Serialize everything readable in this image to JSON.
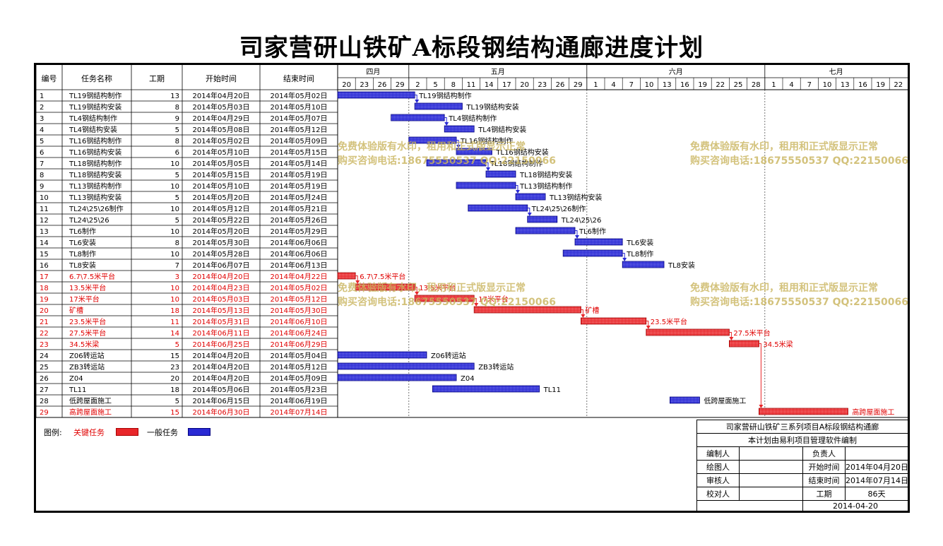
{
  "title": "司家营研山铁矿A标段钢结构通廊进度计划",
  "headers": {
    "id": "编号",
    "name": "任务名称",
    "duration": "工期",
    "start": "开始时间",
    "end": "结束时间"
  },
  "months": [
    {
      "label": "四月",
      "days": [
        "20",
        "23",
        "26",
        "29"
      ]
    },
    {
      "label": "五月",
      "days": [
        "2",
        "5",
        "8",
        "11",
        "14",
        "17",
        "20",
        "23",
        "26",
        "29"
      ]
    },
    {
      "label": "六月",
      "days": [
        "1",
        "4",
        "7",
        "10",
        "13",
        "16",
        "19",
        "22",
        "25",
        "28"
      ]
    },
    {
      "label": "七月",
      "days": [
        "1",
        "4",
        "7",
        "10",
        "13",
        "16",
        "19",
        "22"
      ]
    }
  ],
  "colors": {
    "critical": "#e8262a",
    "normal": "#2a2ad4",
    "critical_text": "#e00000",
    "watermark": "#c9b45c"
  },
  "chart_data": {
    "type": "gantt",
    "x_start": "2014-04-20",
    "tasks": [
      {
        "id": "1",
        "name": "TL19钢结构制作",
        "duration": "13",
        "start": "2014年04月20日",
        "end": "2014年05月02日",
        "s": "2014-04-20",
        "e": "2014-05-02",
        "critical": false,
        "label": "TL19钢结构制作"
      },
      {
        "id": "2",
        "name": "TL19钢结构安装",
        "duration": "8",
        "start": "2014年05月03日",
        "end": "2014年05月10日",
        "s": "2014-05-03",
        "e": "2014-05-10",
        "critical": false,
        "label": "TL19钢结构安装"
      },
      {
        "id": "3",
        "name": "TL4钢结构制作",
        "duration": "9",
        "start": "2014年04月29日",
        "end": "2014年05月07日",
        "s": "2014-04-29",
        "e": "2014-05-07",
        "critical": false,
        "label": "TL4钢结构制作"
      },
      {
        "id": "4",
        "name": "TL4钢结构安装",
        "duration": "5",
        "start": "2014年05月08日",
        "end": "2014年05月12日",
        "s": "2014-05-08",
        "e": "2014-05-12",
        "critical": false,
        "label": "TL4钢结构安装"
      },
      {
        "id": "5",
        "name": "TL16钢结构制作",
        "duration": "8",
        "start": "2014年05月02日",
        "end": "2014年05月09日",
        "s": "2014-05-02",
        "e": "2014-05-09",
        "critical": false,
        "label": "TL16钢结构制作"
      },
      {
        "id": "6",
        "name": "TL16钢结构安装",
        "duration": "6",
        "start": "2014年05月10日",
        "end": "2014年05月15日",
        "s": "2014-05-10",
        "e": "2014-05-15",
        "critical": false,
        "label": "TL16钢结构安装"
      },
      {
        "id": "7",
        "name": "TL18钢结构制作",
        "duration": "10",
        "start": "2014年05月05日",
        "end": "2014年05月14日",
        "s": "2014-05-05",
        "e": "2014-05-14",
        "critical": false,
        "label": "TL18钢结构制作"
      },
      {
        "id": "8",
        "name": "TL18钢结构安装",
        "duration": "5",
        "start": "2014年05月15日",
        "end": "2014年05月19日",
        "s": "2014-05-15",
        "e": "2014-05-19",
        "critical": false,
        "label": "TL18钢结构安装"
      },
      {
        "id": "9",
        "name": "TL13钢结构制作",
        "duration": "10",
        "start": "2014年05月10日",
        "end": "2014年05月19日",
        "s": "2014-05-10",
        "e": "2014-05-19",
        "critical": false,
        "label": "TL13钢结构制作"
      },
      {
        "id": "10",
        "name": "TL13钢结构安装",
        "duration": "5",
        "start": "2014年05月20日",
        "end": "2014年05月24日",
        "s": "2014-05-20",
        "e": "2014-05-24",
        "critical": false,
        "label": "TL13钢结构安装"
      },
      {
        "id": "11",
        "name": "TL24\\25\\26制作",
        "duration": "10",
        "start": "2014年05月12日",
        "end": "2014年05月21日",
        "s": "2014-05-12",
        "e": "2014-05-21",
        "critical": false,
        "label": "TL24\\25\\26制作"
      },
      {
        "id": "12",
        "name": "TL24\\25\\26",
        "duration": "5",
        "start": "2014年05月22日",
        "end": "2014年05月26日",
        "s": "2014-05-22",
        "e": "2014-05-26",
        "critical": false,
        "label": "TL24\\25\\26"
      },
      {
        "id": "13",
        "name": "TL6制作",
        "duration": "10",
        "start": "2014年05月20日",
        "end": "2014年05月29日",
        "s": "2014-05-20",
        "e": "2014-05-29",
        "critical": false,
        "label": "TL6制作"
      },
      {
        "id": "14",
        "name": "TL6安装",
        "duration": "8",
        "start": "2014年05月30日",
        "end": "2014年06月06日",
        "s": "2014-05-30",
        "e": "2014-06-06",
        "critical": false,
        "label": "TL6安装"
      },
      {
        "id": "15",
        "name": "TL8制作",
        "duration": "10",
        "start": "2014年05月28日",
        "end": "2014年06月06日",
        "s": "2014-05-28",
        "e": "2014-06-06",
        "critical": false,
        "label": "TL8制作"
      },
      {
        "id": "16",
        "name": "TL8安装",
        "duration": "7",
        "start": "2014年06月07日",
        "end": "2014年06月13日",
        "s": "2014-06-07",
        "e": "2014-06-13",
        "critical": false,
        "label": "TL8安装"
      },
      {
        "id": "17",
        "name": "6.7\\7.5米平台",
        "duration": "3",
        "start": "2014年04月20日",
        "end": "2014年04月22日",
        "s": "2014-04-20",
        "e": "2014-04-22",
        "critical": true,
        "label": "6.7\\7.5米平台"
      },
      {
        "id": "18",
        "name": "13.5米平台",
        "duration": "10",
        "start": "2014年04月23日",
        "end": "2014年05月02日",
        "s": "2014-04-23",
        "e": "2014-05-02",
        "critical": true,
        "label": "13.5米平台"
      },
      {
        "id": "19",
        "name": "17米平台",
        "duration": "10",
        "start": "2014年05月03日",
        "end": "2014年05月12日",
        "s": "2014-05-03",
        "e": "2014-05-12",
        "critical": true,
        "label": "17米平台"
      },
      {
        "id": "20",
        "name": "矿槽",
        "duration": "18",
        "start": "2014年05月13日",
        "end": "2014年05月30日",
        "s": "2014-05-13",
        "e": "2014-05-30",
        "critical": true,
        "label": "矿槽"
      },
      {
        "id": "21",
        "name": "23.5米平台",
        "duration": "11",
        "start": "2014年05月31日",
        "end": "2014年06月10日",
        "s": "2014-05-31",
        "e": "2014-06-10",
        "critical": true,
        "label": "23.5米平台"
      },
      {
        "id": "22",
        "name": "27.5米平台",
        "duration": "14",
        "start": "2014年06月11日",
        "end": "2014年06月24日",
        "s": "2014-06-11",
        "e": "2014-06-24",
        "critical": true,
        "label": "27.5米平台"
      },
      {
        "id": "23",
        "name": "34.5米梁",
        "duration": "5",
        "start": "2014年06月25日",
        "end": "2014年06月29日",
        "s": "2014-06-25",
        "e": "2014-06-29",
        "critical": true,
        "label": "34.5米梁"
      },
      {
        "id": "24",
        "name": "Z06转运站",
        "duration": "15",
        "start": "2014年04月20日",
        "end": "2014年05月04日",
        "s": "2014-04-20",
        "e": "2014-05-04",
        "critical": false,
        "label": "Z06转运站"
      },
      {
        "id": "25",
        "name": "ZB3转运站",
        "duration": "23",
        "start": "2014年04月20日",
        "end": "2014年05月12日",
        "s": "2014-04-20",
        "e": "2014-05-12",
        "critical": false,
        "label": "ZB3转运站"
      },
      {
        "id": "26",
        "name": "Z04",
        "duration": "20",
        "start": "2014年04月20日",
        "end": "2014年05月09日",
        "s": "2014-04-20",
        "e": "2014-05-09",
        "critical": false,
        "label": "Z04"
      },
      {
        "id": "27",
        "name": "TL11",
        "duration": "18",
        "start": "2014年05月06日",
        "end": "2014年05月23日",
        "s": "2014-05-06",
        "e": "2014-05-23",
        "critical": false,
        "label": "TL11"
      },
      {
        "id": "28",
        "name": "低跨屋面施工",
        "duration": "5",
        "start": "2014年06月15日",
        "end": "2014年06月19日",
        "s": "2014-06-15",
        "e": "2014-06-19",
        "critical": false,
        "label": "低跨屋面施工"
      },
      {
        "id": "29",
        "name": "高跨屋面施工",
        "duration": "15",
        "start": "2014年06月30日",
        "end": "2014年07月14日",
        "s": "2014-06-30",
        "e": "2014-07-14",
        "critical": true,
        "label": "高跨屋面施工"
      }
    ],
    "links": [
      [
        1,
        2
      ],
      [
        3,
        4
      ],
      [
        5,
        6
      ],
      [
        7,
        8
      ],
      [
        9,
        10
      ],
      [
        11,
        12
      ],
      [
        13,
        14
      ],
      [
        15,
        16
      ],
      [
        17,
        18
      ],
      [
        18,
        19
      ],
      [
        19,
        20
      ],
      [
        20,
        21
      ],
      [
        21,
        22
      ],
      [
        22,
        23
      ],
      [
        23,
        29
      ]
    ]
  },
  "watermark": {
    "line1": "免费体验版有水印，租用和正式版显示正常",
    "line2": "购买咨询电话:18675550537 QQ:22150066"
  },
  "legend": {
    "label": "图例:",
    "critical": "关键任务",
    "normal": "一般任务"
  },
  "info": {
    "project": "司家营研山铁矿三系列项目A标段钢结构通廊",
    "software": "本计划由易利项目管理软件编制",
    "editor_label": "编制人",
    "owner_label": "负责人",
    "drawer_label": "绘图人",
    "start_label": "开始时间",
    "start_value": "2014年04月20日",
    "reviewer_label": "审核人",
    "end_label": "结束时间",
    "end_value": "2014年07月14日",
    "checker_label": "校对人",
    "duration_label": "工期",
    "duration_value": "86天",
    "date": "2014-04-20"
  }
}
